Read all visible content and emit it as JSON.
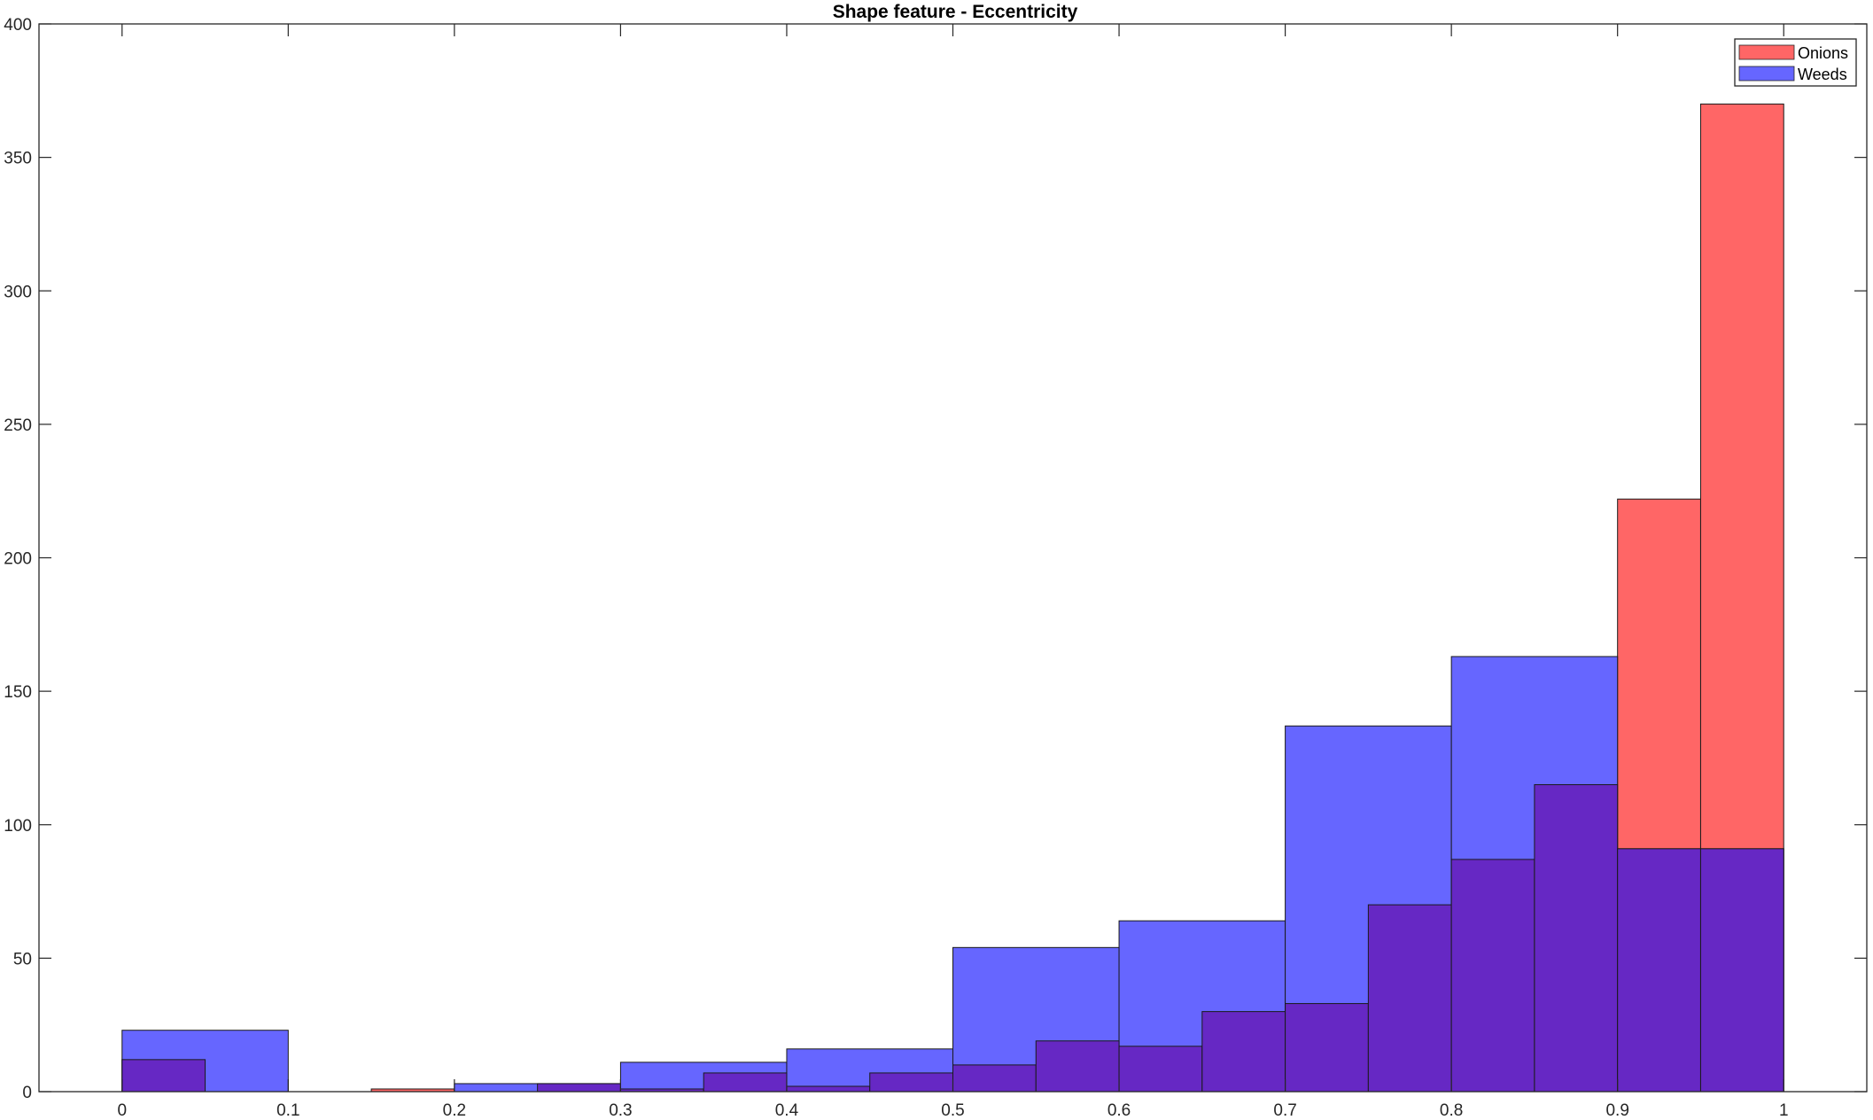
{
  "chart_data": {
    "type": "bar",
    "subtype": "overlapping-histogram",
    "title": "Shape feature - Eccentricity",
    "xlabel": "",
    "ylabel": "",
    "xlim": [
      -0.05,
      1.05
    ],
    "ylim": [
      0,
      400
    ],
    "xticks": [
      "0",
      "0.1",
      "0.2",
      "0.3",
      "0.4",
      "0.5",
      "0.6",
      "0.7",
      "0.8",
      "0.9",
      "1"
    ],
    "xtick_values": [
      0,
      0.1,
      0.2,
      0.3,
      0.4,
      0.5,
      0.6,
      0.7,
      0.8,
      0.9,
      1.0
    ],
    "yticks": [
      "0",
      "50",
      "100",
      "150",
      "200",
      "250",
      "300",
      "350",
      "400"
    ],
    "ytick_values": [
      0,
      50,
      100,
      150,
      200,
      250,
      300,
      350,
      400
    ],
    "grid": false,
    "legend_position": "top-right",
    "series": [
      {
        "name": "Onions",
        "color": "#ff6666",
        "bin_edges": [
          0,
          0.05,
          0.1,
          0.15,
          0.2,
          0.25,
          0.3,
          0.35,
          0.4,
          0.45,
          0.5,
          0.55,
          0.6,
          0.65,
          0.7,
          0.75,
          0.8,
          0.85,
          0.9,
          0.95,
          1.0
        ],
        "values": [
          12,
          0,
          0,
          1,
          0,
          3,
          1,
          7,
          2,
          7,
          10,
          19,
          17,
          30,
          33,
          70,
          87,
          115,
          222,
          370
        ]
      },
      {
        "name": "Weeds",
        "color": "#6666ff",
        "bin_edges": [
          0,
          0.1,
          0.2,
          0.3,
          0.4,
          0.5,
          0.6,
          0.7,
          0.8,
          0.9,
          1.0
        ],
        "values": [
          23,
          0,
          3,
          11,
          16,
          54,
          64,
          137,
          163,
          91
        ]
      }
    ],
    "overlap_color": "#6628c4"
  }
}
